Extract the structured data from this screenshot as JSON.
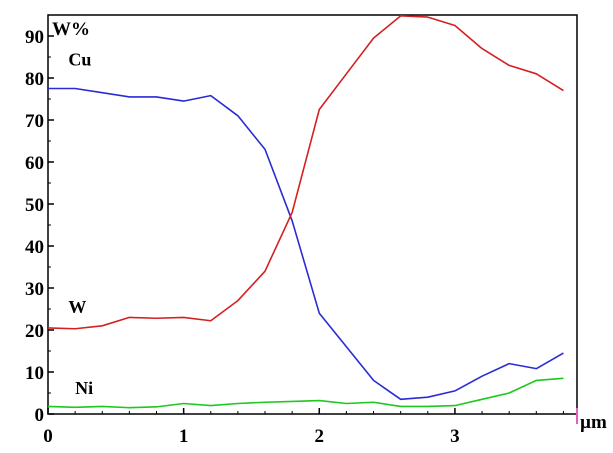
{
  "chart_data": {
    "type": "line",
    "ylabel": "W%",
    "xlabel": "µm",
    "xlim": [
      0,
      3.9
    ],
    "ylim": [
      0,
      95
    ],
    "x_ticks": [
      0,
      1,
      2,
      3
    ],
    "y_ticks": [
      0,
      10,
      20,
      30,
      40,
      50,
      60,
      70,
      80,
      90
    ],
    "grid": false,
    "series": [
      {
        "name": "Cu",
        "color": "#2b2bd6",
        "x": [
          0,
          0.2,
          0.4,
          0.6,
          0.8,
          1.0,
          1.2,
          1.4,
          1.6,
          1.8,
          2.0,
          2.2,
          2.4,
          2.6,
          2.8,
          3.0,
          3.2,
          3.4,
          3.6,
          3.8
        ],
        "values": [
          77.5,
          77.5,
          76.5,
          75.5,
          75.5,
          74.5,
          75.8,
          71,
          63,
          46,
          24,
          16,
          8,
          3.5,
          4,
          5.5,
          9,
          12,
          10.8,
          14.5
        ]
      },
      {
        "name": "W",
        "color": "#d42020",
        "x": [
          0,
          0.2,
          0.4,
          0.6,
          0.8,
          1.0,
          1.2,
          1.4,
          1.6,
          1.8,
          2.0,
          2.2,
          2.4,
          2.6,
          2.8,
          3.0,
          3.2,
          3.4,
          3.6,
          3.8
        ],
        "values": [
          20.5,
          20.3,
          21,
          23,
          22.8,
          23,
          22.2,
          27,
          34,
          48,
          72.5,
          81,
          89.5,
          94.8,
          94.5,
          92.5,
          87,
          83,
          81,
          77
        ]
      },
      {
        "name": "Ni",
        "color": "#1ec81e",
        "x": [
          0,
          0.2,
          0.4,
          0.6,
          0.8,
          1.0,
          1.2,
          1.4,
          1.6,
          1.8,
          2.0,
          2.2,
          2.4,
          2.6,
          2.8,
          3.0,
          3.2,
          3.4,
          3.6,
          3.8
        ],
        "values": [
          1.8,
          1.6,
          1.8,
          1.5,
          1.7,
          2.5,
          2.0,
          2.5,
          2.8,
          3.0,
          3.2,
          2.5,
          2.8,
          1.8,
          1.8,
          2.0,
          3.5,
          5.0,
          8.0,
          8.5
        ]
      }
    ]
  }
}
